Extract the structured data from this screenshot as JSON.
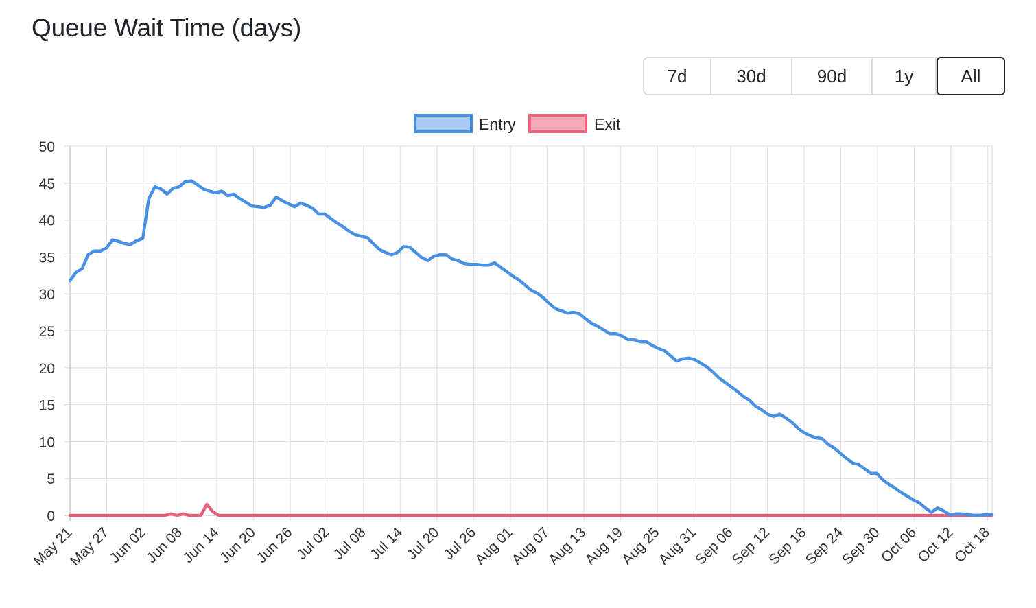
{
  "title": "Queue Wait Time (days)",
  "range_buttons": [
    {
      "label": "7d",
      "active": false
    },
    {
      "label": "30d",
      "active": false
    },
    {
      "label": "90d",
      "active": false
    },
    {
      "label": "1y",
      "active": false
    },
    {
      "label": "All",
      "active": true
    }
  ],
  "chart_data": {
    "type": "line",
    "title": "",
    "xlabel": "",
    "ylabel": "",
    "ylim": [
      0,
      50
    ],
    "yticks": [
      0,
      5,
      10,
      15,
      20,
      25,
      30,
      35,
      40,
      45,
      50
    ],
    "grid": true,
    "legend_position": "top",
    "x_tick_labels": [
      "May 21",
      "May 27",
      "Jun 02",
      "Jun 08",
      "Jun 14",
      "Jun 20",
      "Jun 26",
      "Jul 02",
      "Jul 08",
      "Jul 14",
      "Jul 20",
      "Jul 26",
      "Aug 01",
      "Aug 07",
      "Aug 13",
      "Aug 19",
      "Aug 25",
      "Aug 31",
      "Sep 06",
      "Sep 12",
      "Sep 18",
      "Sep 24",
      "Sep 30",
      "Oct 06",
      "Oct 12",
      "Oct 18"
    ],
    "x_start": "May 21",
    "x_end": "Oct 18",
    "series": [
      {
        "name": "Entry",
        "color": "#4a90e2",
        "fill": "#a9cbf2",
        "values": [
          31.8,
          32.9,
          33.4,
          35.3,
          35.8,
          35.8,
          36.2,
          37.3,
          37.1,
          36.8,
          36.7,
          37.2,
          37.5,
          42.9,
          44.5,
          44.2,
          43.5,
          44.3,
          44.5,
          45.2,
          45.3,
          44.8,
          44.2,
          43.9,
          43.7,
          43.9,
          43.3,
          43.5,
          42.9,
          42.4,
          41.9,
          41.8,
          41.7,
          42.0,
          43.1,
          42.6,
          42.2,
          41.8,
          42.3,
          42.0,
          41.6,
          40.8,
          40.8,
          40.2,
          39.6,
          39.1,
          38.5,
          38.0,
          37.8,
          37.6,
          36.8,
          36.0,
          35.6,
          35.3,
          35.6,
          36.4,
          36.3,
          35.6,
          34.9,
          34.5,
          35.1,
          35.3,
          35.3,
          34.7,
          34.5,
          34.1,
          34.0,
          34.0,
          33.9,
          33.9,
          34.2,
          33.6,
          33.0,
          32.4,
          31.9,
          31.2,
          30.5,
          30.1,
          29.5,
          28.7,
          28.0,
          27.7,
          27.4,
          27.5,
          27.3,
          26.6,
          26.0,
          25.6,
          25.1,
          24.6,
          24.6,
          24.3,
          23.8,
          23.8,
          23.5,
          23.5,
          23.0,
          22.6,
          22.3,
          21.6,
          20.9,
          21.2,
          21.3,
          21.1,
          20.6,
          20.1,
          19.4,
          18.6,
          18.0,
          17.4,
          16.8,
          16.1,
          15.6,
          14.8,
          14.3,
          13.7,
          13.4,
          13.7,
          13.2,
          12.6,
          11.8,
          11.2,
          10.8,
          10.5,
          10.4,
          9.6,
          9.1,
          8.4,
          7.7,
          7.1,
          6.9,
          6.3,
          5.7,
          5.7,
          4.8,
          4.2,
          3.7,
          3.1,
          2.6,
          2.1,
          1.7,
          1.0,
          0.4,
          1.0,
          0.6,
          0.1,
          0.2,
          0.2,
          0.1,
          0.0,
          0.0,
          0.1,
          0.1
        ]
      },
      {
        "name": "Exit",
        "color": "#e8637a",
        "fill": "#f4aab7",
        "values": [
          0,
          0,
          0,
          0,
          0,
          0,
          0,
          0,
          0,
          0,
          0,
          0,
          0,
          0,
          0,
          0,
          0,
          0.2,
          0,
          0.2,
          0,
          0,
          0,
          1.5,
          0.5,
          0,
          0,
          0,
          0,
          0,
          0,
          0,
          0,
          0,
          0,
          0,
          0,
          0,
          0,
          0,
          0,
          0,
          0,
          0,
          0,
          0,
          0,
          0,
          0,
          0,
          0,
          0,
          0,
          0,
          0,
          0,
          0,
          0,
          0,
          0,
          0,
          0,
          0,
          0,
          0,
          0,
          0,
          0,
          0,
          0,
          0,
          0,
          0,
          0,
          0,
          0,
          0,
          0,
          0,
          0,
          0,
          0,
          0,
          0,
          0,
          0,
          0,
          0,
          0,
          0,
          0,
          0,
          0,
          0,
          0,
          0,
          0,
          0,
          0,
          0,
          0,
          0,
          0,
          0,
          0,
          0,
          0,
          0,
          0,
          0,
          0,
          0,
          0,
          0,
          0,
          0,
          0,
          0,
          0,
          0,
          0,
          0,
          0,
          0,
          0,
          0,
          0,
          0,
          0,
          0,
          0,
          0,
          0,
          0,
          0,
          0,
          0,
          0,
          0,
          0,
          0,
          0,
          0,
          0,
          0,
          0,
          0,
          0,
          0,
          0,
          0,
          0,
          0,
          0,
          0,
          0
        ]
      }
    ]
  }
}
